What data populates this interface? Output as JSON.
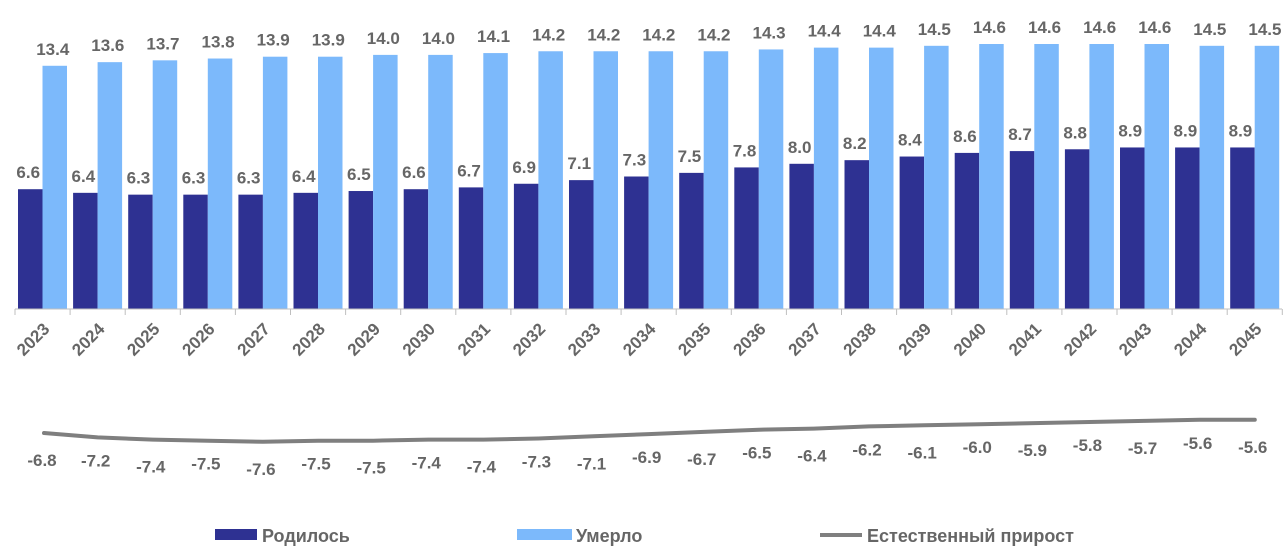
{
  "chart_data": {
    "type": "bar",
    "categories": [
      "2023",
      "2024",
      "2025",
      "2026",
      "2027",
      "2028",
      "2029",
      "2030",
      "2031",
      "2032",
      "2033",
      "2034",
      "2035",
      "2036",
      "2037",
      "2038",
      "2039",
      "2040",
      "2041",
      "2042",
      "2043",
      "2044",
      "2045"
    ],
    "series": [
      {
        "name": "Родилось",
        "type": "bar",
        "color": "#2e3192",
        "values": [
          6.6,
          6.4,
          6.3,
          6.3,
          6.3,
          6.4,
          6.5,
          6.6,
          6.7,
          6.9,
          7.1,
          7.3,
          7.5,
          7.8,
          8.0,
          8.2,
          8.4,
          8.6,
          8.7,
          8.8,
          8.9,
          8.9,
          8.9
        ]
      },
      {
        "name": "Умерло",
        "type": "bar",
        "color": "#7cb9fb",
        "values": [
          13.4,
          13.6,
          13.7,
          13.8,
          13.9,
          13.9,
          14.0,
          14.0,
          14.1,
          14.2,
          14.2,
          14.2,
          14.2,
          14.3,
          14.4,
          14.4,
          14.5,
          14.6,
          14.6,
          14.6,
          14.6,
          14.5,
          14.5
        ]
      },
      {
        "name": "Естественный прирост",
        "type": "line",
        "color": "#7f7f7f",
        "values": [
          -6.8,
          -7.2,
          -7.4,
          -7.5,
          -7.6,
          -7.5,
          -7.5,
          -7.4,
          -7.4,
          -7.3,
          -7.1,
          -6.9,
          -6.7,
          -6.5,
          -6.4,
          -6.2,
          -6.1,
          -6.0,
          -5.9,
          -5.8,
          -5.7,
          -5.6,
          -5.6
        ]
      }
    ],
    "title": "",
    "xlabel": "",
    "ylabel": "",
    "ylim": [
      0,
      14.6
    ],
    "grid": false,
    "legend_position": "bottom"
  }
}
